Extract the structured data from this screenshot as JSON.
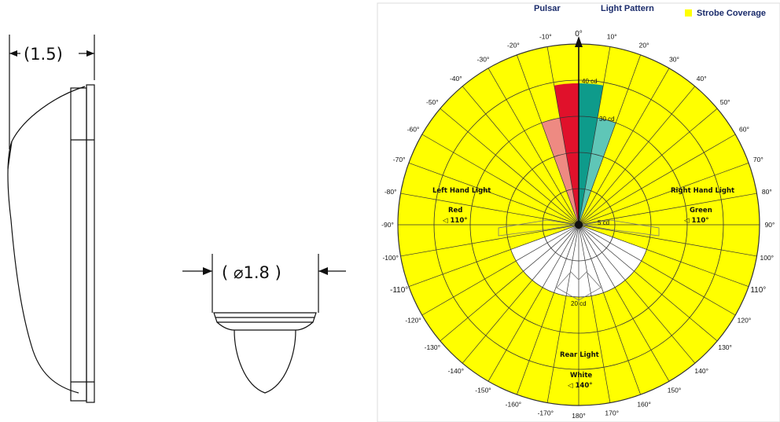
{
  "left_drawing": {
    "side_dimension": "(1.5)",
    "diameter_dimension": "( ⌀1.8 )"
  },
  "polar_diagram": {
    "header": {
      "title_left": "Pulsar",
      "title_right": "Light Pattern",
      "legend_label": "Strobe Coverage"
    },
    "colors": {
      "strobe": "#ffff00",
      "red": "#e0112b",
      "red_light": "#ee8a82",
      "green": "#0e9b8b",
      "green_light": "#5fc6b7",
      "rear": "#ffffff",
      "grid": "#333333",
      "header_text": "#1a2b6b"
    },
    "angle_labels": [
      "0°",
      "10°",
      "20°",
      "30°",
      "40°",
      "50°",
      "60°",
      "70°",
      "80°",
      "90°",
      "100°",
      "110°",
      "120°",
      "130°",
      "140°",
      "150°",
      "160°",
      "170°",
      "180°",
      "-170°",
      "-160°",
      "-150°",
      "-140°",
      "-130°",
      "-120°",
      "-110°",
      "-100°",
      "-90°",
      "-80°",
      "-70°",
      "-60°",
      "-50°",
      "-40°",
      "-30°",
      "-20°",
      "-10°"
    ],
    "zones": {
      "left": {
        "title": "Left Hand Light",
        "color_name": "Red",
        "angle": "◁ 110°"
      },
      "right": {
        "title": "Right Hand Light",
        "color_name": "Green",
        "angle": "◁ 110°"
      },
      "rear": {
        "title": "Rear Light",
        "color_name": "White",
        "angle": "◁ 140°"
      }
    },
    "intensity_labels": {
      "outer": "40 cd",
      "mid": "30 cd",
      "inner": "5 cd",
      "rear": "20 cd"
    }
  }
}
